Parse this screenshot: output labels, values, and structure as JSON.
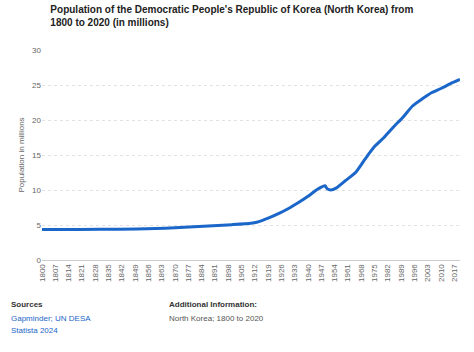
{
  "chart_data": {
    "type": "line",
    "title": "Population of the Democratic People's Republic of Korea (North Korea) from 1800 to 2020 (in millions)",
    "y_label": "Population in millions",
    "x": [
      1800,
      1820,
      1840,
      1860,
      1870,
      1880,
      1890,
      1900,
      1910,
      1913,
      1920,
      1925,
      1930,
      1935,
      1940,
      1945,
      1949,
      1950,
      1952,
      1955,
      1960,
      1965,
      1970,
      1975,
      1980,
      1985,
      1990,
      1995,
      2000,
      2005,
      2010,
      2015,
      2020
    ],
    "values": [
      4.35,
      4.36,
      4.4,
      4.5,
      4.6,
      4.75,
      4.9,
      5.05,
      5.25,
      5.4,
      6.1,
      6.7,
      7.4,
      8.2,
      9.1,
      10.1,
      10.6,
      10.2,
      10.0,
      10.3,
      11.4,
      12.5,
      14.4,
      16.2,
      17.5,
      19.0,
      20.4,
      22.0,
      23.0,
      23.9,
      24.5,
      25.2,
      25.8
    ],
    "color": "#1a66c9",
    "xlim": [
      1800,
      2020
    ],
    "xticks": [
      1800,
      1807,
      1814,
      1821,
      1828,
      1835,
      1842,
      1849,
      1856,
      1863,
      1870,
      1877,
      1884,
      1891,
      1898,
      1905,
      1912,
      1919,
      1926,
      1933,
      1940,
      1947,
      1954,
      1961,
      1968,
      1975,
      1982,
      1989,
      1996,
      2003,
      2010,
      2017
    ],
    "ylim": [
      0,
      30
    ],
    "yticks": [
      0,
      5,
      10,
      15,
      20,
      25,
      30
    ],
    "grid": true,
    "sources_label": "Sources",
    "sources": "Gapminder; UN DESA",
    "copyright": "Statista 2024",
    "info_label": "Additional Information:",
    "info": "North Korea; 1800 to 2020"
  }
}
